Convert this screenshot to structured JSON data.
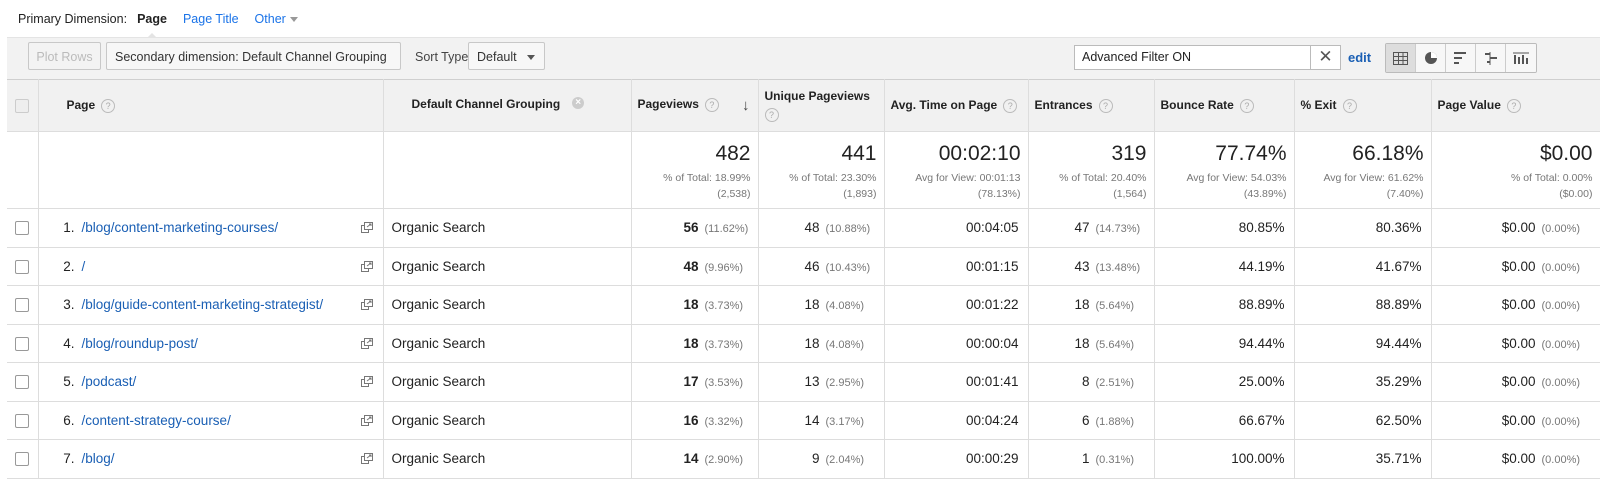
{
  "primary_dimension": {
    "label": "Primary Dimension:",
    "options": [
      "Page",
      "Page Title",
      "Other"
    ],
    "active": "Page"
  },
  "toolbar": {
    "plot_rows": "Plot Rows",
    "secondary_dimension": "Secondary dimension: Default Channel Grouping",
    "sort_type_label": "Sort Type:",
    "sort_type_value": "Default",
    "filter_value": "Advanced Filter ON",
    "edit": "edit",
    "view_icons": [
      "table-view-icon",
      "pie-view-icon",
      "performance-view-icon",
      "comparison-view-icon",
      "pivot-view-icon"
    ]
  },
  "columns": {
    "page": "Page",
    "channel": "Default Channel Grouping",
    "pageviews": "Pageviews",
    "unique_pageviews": "Unique Pageviews",
    "avg_time": "Avg. Time on Page",
    "entrances": "Entrances",
    "bounce_rate": "Bounce Rate",
    "exit": "% Exit",
    "page_value": "Page Value"
  },
  "totals": {
    "pageviews": {
      "value": "482",
      "sub1": "% of Total: 18.99%",
      "sub2": "(2,538)"
    },
    "unique_pageviews": {
      "value": "441",
      "sub1": "% of Total: 23.30%",
      "sub2": "(1,893)"
    },
    "avg_time": {
      "value": "00:02:10",
      "sub1": "Avg for View: 00:01:13",
      "sub2": "(78.13%)"
    },
    "entrances": {
      "value": "319",
      "sub1": "% of Total: 20.40%",
      "sub2": "(1,564)"
    },
    "bounce_rate": {
      "value": "77.74%",
      "sub1": "Avg for View: 54.03%",
      "sub2": "(43.89%)"
    },
    "exit": {
      "value": "66.18%",
      "sub1": "Avg for View: 61.62%",
      "sub2": "(7.40%)"
    },
    "page_value": {
      "value": "$0.00",
      "sub1": "% of Total: 0.00%",
      "sub2": "($0.00)"
    }
  },
  "rows": [
    {
      "n": "1.",
      "page": "/blog/content-marketing-courses/",
      "channel": "Organic Search",
      "pv": "56",
      "pv_pct": "(11.62%)",
      "upv": "48",
      "upv_pct": "(10.88%)",
      "time": "00:04:05",
      "ent": "47",
      "ent_pct": "(14.73%)",
      "bounce": "80.85%",
      "exit": "80.36%",
      "value": "$0.00",
      "value_pct": "(0.00%)"
    },
    {
      "n": "2.",
      "page": "/",
      "channel": "Organic Search",
      "pv": "48",
      "pv_pct": "(9.96%)",
      "upv": "46",
      "upv_pct": "(10.43%)",
      "time": "00:01:15",
      "ent": "43",
      "ent_pct": "(13.48%)",
      "bounce": "44.19%",
      "exit": "41.67%",
      "value": "$0.00",
      "value_pct": "(0.00%)"
    },
    {
      "n": "3.",
      "page": "/blog/guide-content-marketing-strategist/",
      "channel": "Organic Search",
      "pv": "18",
      "pv_pct": "(3.73%)",
      "upv": "18",
      "upv_pct": "(4.08%)",
      "time": "00:01:22",
      "ent": "18",
      "ent_pct": "(5.64%)",
      "bounce": "88.89%",
      "exit": "88.89%",
      "value": "$0.00",
      "value_pct": "(0.00%)"
    },
    {
      "n": "4.",
      "page": "/blog/roundup-post/",
      "channel": "Organic Search",
      "pv": "18",
      "pv_pct": "(3.73%)",
      "upv": "18",
      "upv_pct": "(4.08%)",
      "time": "00:00:04",
      "ent": "18",
      "ent_pct": "(5.64%)",
      "bounce": "94.44%",
      "exit": "94.44%",
      "value": "$0.00",
      "value_pct": "(0.00%)"
    },
    {
      "n": "5.",
      "page": "/podcast/",
      "channel": "Organic Search",
      "pv": "17",
      "pv_pct": "(3.53%)",
      "upv": "13",
      "upv_pct": "(2.95%)",
      "time": "00:01:41",
      "ent": "8",
      "ent_pct": "(2.51%)",
      "bounce": "25.00%",
      "exit": "35.29%",
      "value": "$0.00",
      "value_pct": "(0.00%)"
    },
    {
      "n": "6.",
      "page": "/content-strategy-course/",
      "channel": "Organic Search",
      "pv": "16",
      "pv_pct": "(3.32%)",
      "upv": "14",
      "upv_pct": "(3.17%)",
      "time": "00:04:24",
      "ent": "6",
      "ent_pct": "(1.88%)",
      "bounce": "66.67%",
      "exit": "62.50%",
      "value": "$0.00",
      "value_pct": "(0.00%)"
    },
    {
      "n": "7.",
      "page": "/blog/",
      "channel": "Organic Search",
      "pv": "14",
      "pv_pct": "(2.90%)",
      "upv": "9",
      "upv_pct": "(2.04%)",
      "time": "00:00:29",
      "ent": "1",
      "ent_pct": "(0.31%)",
      "bounce": "100.00%",
      "exit": "35.71%",
      "value": "$0.00",
      "value_pct": "(0.00%)"
    }
  ]
}
